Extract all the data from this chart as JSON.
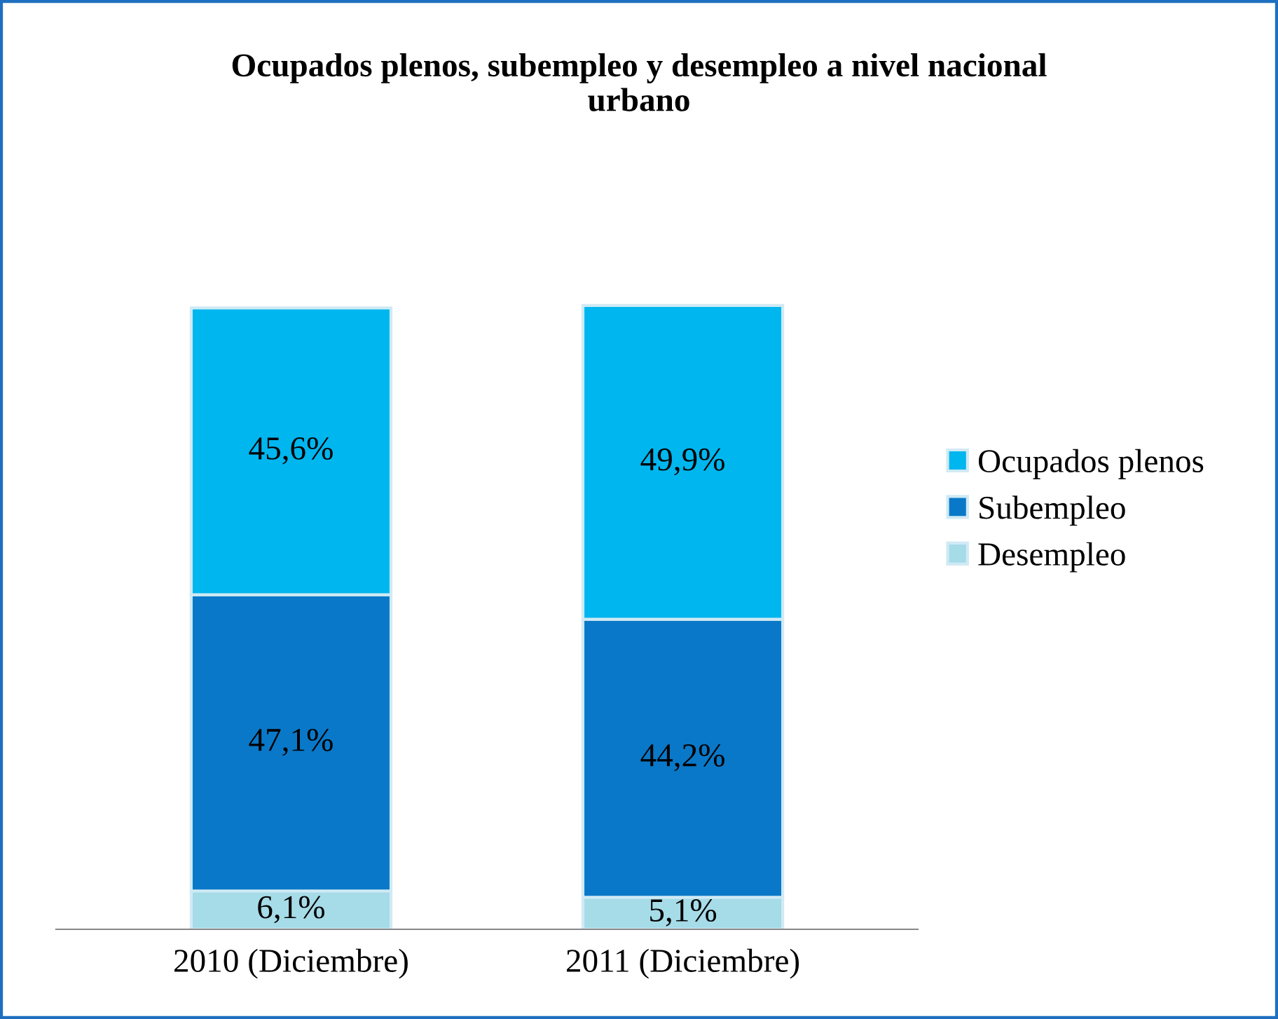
{
  "chart_data": {
    "type": "bar",
    "stacked": true,
    "title": "Ocupados plenos, subempleo y desempleo a nivel nacional\nurbano",
    "categories": [
      "2010 (Diciembre)",
      "2011 (Diciembre)"
    ],
    "series": [
      {
        "name": "Desempleo",
        "color": "#a6dbe8",
        "values": [
          6.1,
          5.1
        ],
        "value_labels": [
          "6,1%",
          "5,1%"
        ]
      },
      {
        "name": "Subempleo",
        "color": "#0a78c8",
        "values": [
          47.1,
          44.2
        ],
        "value_labels": [
          "47,1%",
          "44,2%"
        ]
      },
      {
        "name": "Ocupados plenos",
        "color": "#00b6ef",
        "values": [
          45.6,
          49.9
        ],
        "value_labels": [
          "45,6%",
          "49,9%"
        ]
      }
    ],
    "legend": "right",
    "grid": false
  }
}
